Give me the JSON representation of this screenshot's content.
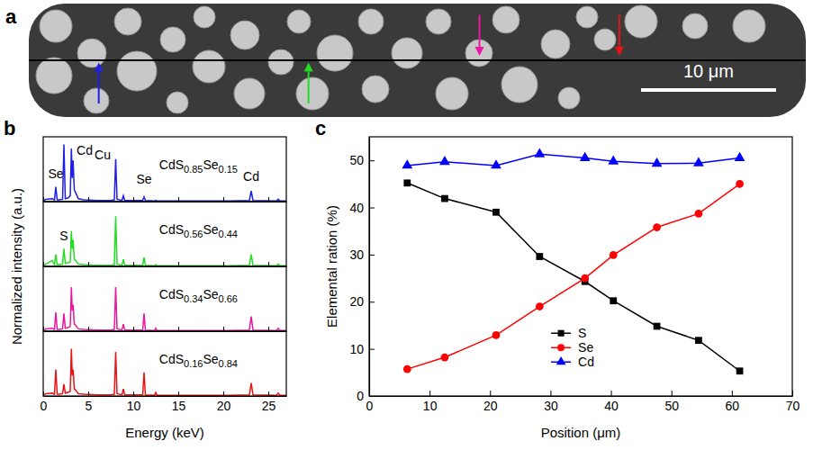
{
  "chart_data": [
    {
      "type": "image",
      "label": "a",
      "scale_bar": "10 μm",
      "colors": [
        "#1f1fe6",
        "#22dd22",
        "#e619a0",
        "#e61414"
      ]
    },
    {
      "type": "line",
      "label": "b",
      "xlabel": "Energy (keV)",
      "ylabel": "Normalized intensity (a.u.)",
      "xlim": [
        0,
        27
      ],
      "xticks": [
        0,
        5,
        10,
        15,
        20,
        25
      ],
      "ylim": [
        0,
        1.1
      ],
      "tick_labels": "x",
      "x": [
        0,
        0.3,
        1.0,
        1.25,
        1.4,
        1.55,
        1.8,
        2.15,
        2.3,
        2.45,
        2.75,
        3.0,
        3.13,
        3.22,
        3.32,
        3.45,
        3.6,
        3.9,
        4.5,
        6,
        7.5,
        7.9,
        8.05,
        8.2,
        8.75,
        8.9,
        9.05,
        10,
        11.05,
        11.2,
        11.35,
        12.35,
        12.5,
        12.65,
        15,
        20,
        22.9,
        23.1,
        23.3,
        25.9,
        26.1,
        26.3,
        27
      ],
      "series": [
        {
          "name": "CdS0.85Se0.15",
          "color": "#1f1fe6",
          "values": [
            0.01,
            0.04,
            0.05,
            0.03,
            0.25,
            0.03,
            0.03,
            0.04,
            0.97,
            0.05,
            0.06,
            0.1,
            0.9,
            0.4,
            0.7,
            0.2,
            0.15,
            0.05,
            0.03,
            0.02,
            0.02,
            0.03,
            0.72,
            0.04,
            0.02,
            0.1,
            0.02,
            0.02,
            0.02,
            0.08,
            0.02,
            0.01,
            0.02,
            0.01,
            0.01,
            0.01,
            0.02,
            0.18,
            0.02,
            0.01,
            0.04,
            0.01,
            0.01
          ]
        },
        {
          "name": "CdS0.56Se0.44",
          "color": "#22dd22",
          "values": [
            0.01,
            0.04,
            0.1,
            0.03,
            0.2,
            0.03,
            0.03,
            0.04,
            0.3,
            0.05,
            0.06,
            0.08,
            0.6,
            0.3,
            0.45,
            0.12,
            0.1,
            0.04,
            0.03,
            0.02,
            0.02,
            0.03,
            0.85,
            0.04,
            0.02,
            0.12,
            0.02,
            0.02,
            0.02,
            0.15,
            0.02,
            0.01,
            0.03,
            0.01,
            0.01,
            0.01,
            0.02,
            0.2,
            0.02,
            0.01,
            0.04,
            0.01,
            0.01
          ]
        },
        {
          "name": "CdS0.34Se0.66",
          "color": "#e619a0",
          "values": [
            0.01,
            0.04,
            0.05,
            0.03,
            0.32,
            0.03,
            0.03,
            0.04,
            0.3,
            0.05,
            0.06,
            0.08,
            0.75,
            0.35,
            0.45,
            0.12,
            0.1,
            0.04,
            0.03,
            0.02,
            0.02,
            0.03,
            0.75,
            0.04,
            0.02,
            0.12,
            0.02,
            0.02,
            0.02,
            0.3,
            0.02,
            0.01,
            0.05,
            0.01,
            0.01,
            0.01,
            0.02,
            0.25,
            0.02,
            0.01,
            0.05,
            0.01,
            0.01
          ]
        },
        {
          "name": "CdS0.16Se0.84",
          "color": "#e61414",
          "values": [
            0.01,
            0.04,
            0.05,
            0.03,
            0.45,
            0.03,
            0.03,
            0.04,
            0.2,
            0.05,
            0.06,
            0.08,
            0.8,
            0.35,
            0.45,
            0.12,
            0.1,
            0.04,
            0.03,
            0.02,
            0.02,
            0.03,
            0.75,
            0.04,
            0.02,
            0.12,
            0.02,
            0.02,
            0.02,
            0.4,
            0.02,
            0.01,
            0.06,
            0.01,
            0.01,
            0.01,
            0.02,
            0.22,
            0.02,
            0.01,
            0.05,
            0.01,
            0.01
          ]
        }
      ],
      "annotations": [
        {
          "text": "Se",
          "x": 1.4,
          "y": 0.4,
          "series": 0
        },
        {
          "text": "Cd",
          "x": 4.6,
          "y": 0.8,
          "series": 0
        },
        {
          "text": "Cu",
          "x": 6.6,
          "y": 0.72,
          "series": 0
        },
        {
          "text": "Se",
          "x": 11.2,
          "y": 0.3,
          "series": 0
        },
        {
          "text": "Cd",
          "x": 23.1,
          "y": 0.35,
          "series": 0
        },
        {
          "text": "S",
          "x": 2.3,
          "y": 0.45,
          "series": 1
        }
      ]
    },
    {
      "type": "line",
      "label": "c",
      "xlabel": "Position (μm)",
      "ylabel": "Elemental ration (%)",
      "xlim": [
        0,
        70
      ],
      "xticks": [
        0,
        10,
        20,
        30,
        40,
        50,
        60,
        70
      ],
      "ylim": [
        0,
        55
      ],
      "yticks": [
        0,
        10,
        20,
        30,
        40,
        50
      ],
      "legend": "lower center",
      "x": [
        6.3,
        12.5,
        21,
        28.2,
        35.7,
        40.4,
        47.6,
        54.5,
        61.3
      ],
      "series": [
        {
          "name": "S",
          "color": "#000000",
          "marker": "square",
          "values": [
            45.2,
            41.9,
            39,
            29.6,
            24.3,
            20.2,
            14.8,
            11.8,
            5.3
          ]
        },
        {
          "name": "Se",
          "color": "#ff0000",
          "marker": "circle",
          "values": [
            5.7,
            8.2,
            12.9,
            19,
            25,
            29.9,
            35.8,
            38.7,
            45
          ]
        },
        {
          "name": "Cd",
          "color": "#0000ff",
          "marker": "triangle",
          "values": [
            48.9,
            49.7,
            48.9,
            51.3,
            50.5,
            49.8,
            49.3,
            49.4,
            50.5
          ]
        }
      ]
    }
  ]
}
